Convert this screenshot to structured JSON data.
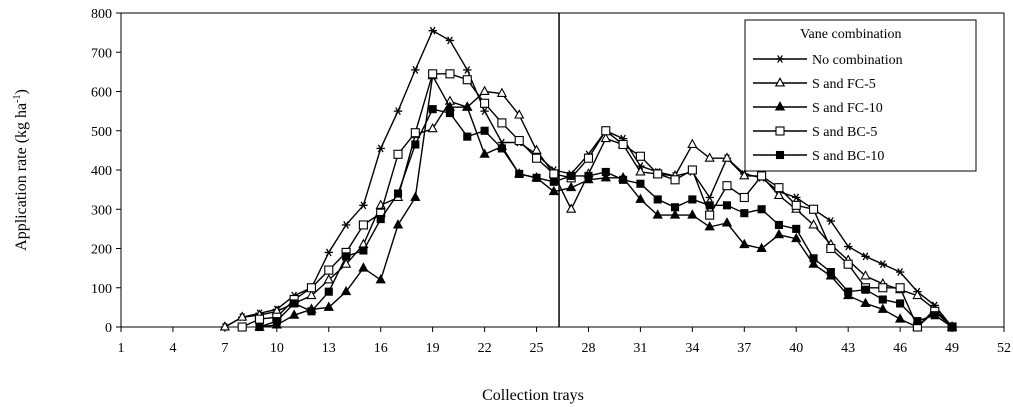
{
  "chart_data": {
    "type": "line",
    "title": "",
    "xlabel": "Collection trays",
    "ylabel": "Application rate (kg ha",
    "ylabel_sup": "-1",
    "ylabel_close": ")",
    "xlim": [
      1,
      52
    ],
    "ylim": [
      0,
      800
    ],
    "x_ticks": [
      1,
      4,
      7,
      10,
      13,
      16,
      19,
      22,
      25,
      28,
      31,
      34,
      37,
      40,
      43,
      46,
      49,
      52
    ],
    "y_ticks": [
      0,
      100,
      200,
      300,
      400,
      500,
      600,
      700,
      800
    ],
    "vertical_reference_x": 26.3,
    "grid": false,
    "legend": {
      "title": "Vane combination",
      "placement": "top-right"
    },
    "series": [
      {
        "name": "No combination",
        "marker": "asterisk",
        "x": [
          7,
          8,
          9,
          10,
          11,
          12,
          13,
          14,
          15,
          16,
          17,
          18,
          19,
          20,
          21,
          22,
          23,
          24,
          25,
          26,
          27,
          28,
          29,
          30,
          31,
          32,
          33,
          34,
          35,
          36,
          37,
          38,
          39,
          40,
          41,
          42,
          43,
          44,
          45,
          46,
          47,
          48,
          49
        ],
        "values": [
          0,
          25,
          35,
          45,
          80,
          100,
          190,
          260,
          310,
          455,
          550,
          655,
          755,
          730,
          655,
          550,
          470,
          470,
          440,
          400,
          390,
          440,
          500,
          480,
          410,
          395,
          385,
          395,
          330,
          430,
          390,
          380,
          345,
          330,
          300,
          270,
          205,
          180,
          160,
          140,
          90,
          55,
          0
        ]
      },
      {
        "name": "S and FC-5",
        "marker": "triangle-open",
        "x": [
          7,
          8,
          9,
          10,
          11,
          12,
          13,
          14,
          15,
          16,
          17,
          18,
          19,
          20,
          21,
          22,
          23,
          24,
          25,
          26,
          27,
          28,
          29,
          30,
          31,
          32,
          33,
          34,
          35,
          36,
          37,
          38,
          39,
          40,
          41,
          42,
          43,
          44,
          45,
          46,
          47,
          48,
          49
        ],
        "values": [
          0,
          25,
          30,
          40,
          60,
          80,
          120,
          160,
          210,
          310,
          330,
          490,
          505,
          575,
          560,
          600,
          595,
          540,
          450,
          390,
          300,
          390,
          480,
          465,
          395,
          390,
          385,
          465,
          430,
          430,
          385,
          385,
          335,
          300,
          260,
          210,
          170,
          130,
          110,
          95,
          80,
          45,
          0
        ]
      },
      {
        "name": "S and FC-10",
        "marker": "triangle-filled",
        "x": [
          9,
          10,
          11,
          12,
          13,
          14,
          15,
          16,
          17,
          18,
          19,
          20,
          21,
          22,
          23,
          24,
          25,
          26,
          27,
          28,
          29,
          30,
          31,
          32,
          33,
          34,
          35,
          36,
          37,
          38,
          39,
          40,
          41,
          42,
          43,
          44,
          45,
          46,
          47,
          48,
          49
        ],
        "values": [
          0,
          5,
          30,
          45,
          50,
          90,
          150,
          120,
          260,
          330,
          640,
          560,
          560,
          440,
          460,
          390,
          380,
          345,
          355,
          375,
          380,
          380,
          325,
          285,
          285,
          285,
          255,
          265,
          210,
          200,
          235,
          225,
          160,
          130,
          80,
          60,
          45,
          20,
          0,
          45,
          0
        ]
      },
      {
        "name": "S and BC-5",
        "marker": "square-open",
        "x": [
          8,
          9,
          10,
          11,
          12,
          13,
          14,
          15,
          16,
          17,
          18,
          19,
          20,
          21,
          22,
          23,
          24,
          25,
          26,
          27,
          28,
          29,
          30,
          31,
          32,
          33,
          34,
          35,
          36,
          37,
          38,
          39,
          40,
          41,
          42,
          43,
          44,
          45,
          46,
          47,
          48,
          49
        ],
        "values": [
          0,
          20,
          25,
          70,
          100,
          145,
          190,
          260,
          290,
          440,
          495,
          645,
          645,
          630,
          570,
          520,
          475,
          430,
          390,
          380,
          430,
          500,
          465,
          435,
          390,
          375,
          400,
          285,
          360,
          330,
          385,
          355,
          310,
          300,
          200,
          160,
          100,
          100,
          100,
          0,
          40,
          0
        ]
      },
      {
        "name": "S and BC-10",
        "marker": "square-filled",
        "x": [
          9,
          10,
          11,
          12,
          13,
          14,
          15,
          16,
          17,
          18,
          19,
          20,
          21,
          22,
          23,
          24,
          25,
          26,
          27,
          28,
          29,
          30,
          31,
          32,
          33,
          34,
          35,
          36,
          37,
          38,
          39,
          40,
          41,
          42,
          43,
          44,
          45,
          46,
          47,
          48,
          49
        ],
        "values": [
          0,
          15,
          60,
          40,
          90,
          180,
          195,
          275,
          340,
          465,
          555,
          545,
          485,
          500,
          455,
          390,
          380,
          370,
          385,
          385,
          395,
          375,
          365,
          325,
          305,
          325,
          310,
          310,
          290,
          300,
          260,
          250,
          175,
          140,
          90,
          95,
          70,
          60,
          15,
          30,
          0
        ]
      }
    ]
  }
}
